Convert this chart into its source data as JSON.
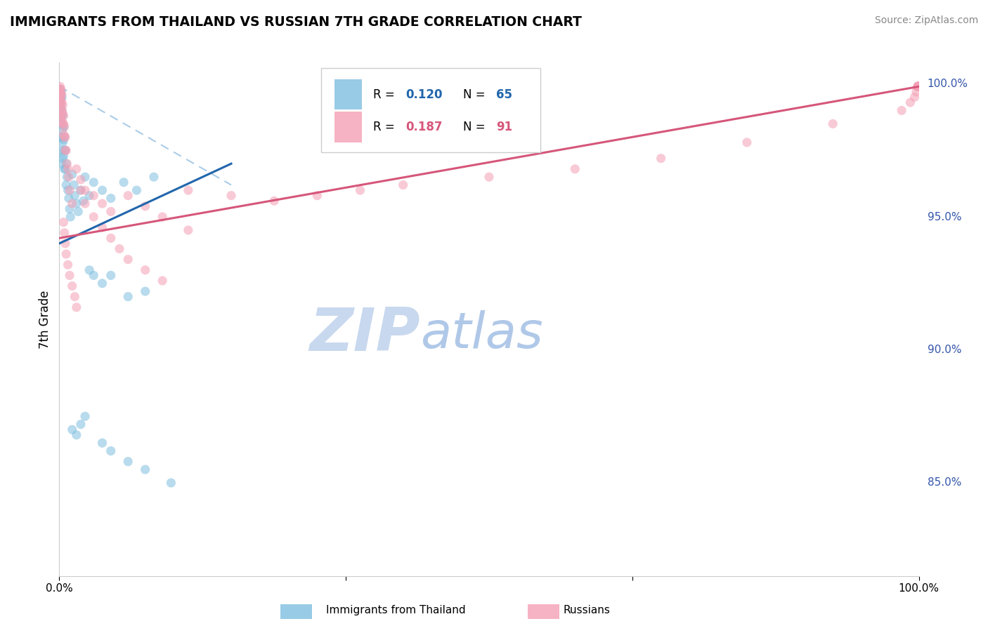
{
  "title": "IMMIGRANTS FROM THAILAND VS RUSSIAN 7TH GRADE CORRELATION CHART",
  "source_text": "Source: ZipAtlas.com",
  "xlabel_left": "Immigrants from Thailand",
  "xlabel_right": "Russians",
  "ylabel": "7th Grade",
  "xlim": [
    0.0,
    1.0
  ],
  "ylim": [
    0.815,
    1.008
  ],
  "right_yticks": [
    0.85,
    0.9,
    0.95,
    1.0
  ],
  "right_yticklabels": [
    "85.0%",
    "90.0%",
    "95.0%",
    "100.0%"
  ],
  "legend_blue_R": "0.120",
  "legend_blue_N": "65",
  "legend_pink_R": "0.187",
  "legend_pink_N": "91",
  "blue_color": "#7fbfdf",
  "pink_color": "#f4a0b5",
  "blue_line_color": "#2166ac",
  "pink_line_color": "#d6567a",
  "dashed_line_color": "#aacce8",
  "scatter_alpha": 0.55,
  "marker_size": 90,
  "blue_points_x": [
    0.001,
    0.001,
    0.001,
    0.001,
    0.002,
    0.002,
    0.002,
    0.002,
    0.002,
    0.002,
    0.003,
    0.003,
    0.003,
    0.003,
    0.003,
    0.003,
    0.004,
    0.004,
    0.004,
    0.004,
    0.005,
    0.005,
    0.005,
    0.006,
    0.006,
    0.006,
    0.007,
    0.007,
    0.008,
    0.008,
    0.009,
    0.01,
    0.011,
    0.012,
    0.013,
    0.015,
    0.017,
    0.018,
    0.02,
    0.022,
    0.025,
    0.028,
    0.03,
    0.035,
    0.04,
    0.05,
    0.06,
    0.075,
    0.09,
    0.11,
    0.035,
    0.04,
    0.05,
    0.06,
    0.08,
    0.1,
    0.015,
    0.02,
    0.025,
    0.03,
    0.05,
    0.06,
    0.08,
    0.1,
    0.13
  ],
  "blue_points_y": [
    0.998,
    0.996,
    0.994,
    0.99,
    0.997,
    0.995,
    0.992,
    0.988,
    0.985,
    0.98,
    0.995,
    0.99,
    0.985,
    0.98,
    0.975,
    0.97,
    0.988,
    0.983,
    0.978,
    0.972,
    0.984,
    0.979,
    0.973,
    0.98,
    0.975,
    0.968,
    0.975,
    0.968,
    0.97,
    0.962,
    0.965,
    0.96,
    0.957,
    0.953,
    0.95,
    0.966,
    0.962,
    0.958,
    0.955,
    0.952,
    0.96,
    0.956,
    0.965,
    0.958,
    0.963,
    0.96,
    0.957,
    0.963,
    0.96,
    0.965,
    0.93,
    0.928,
    0.925,
    0.928,
    0.92,
    0.922,
    0.87,
    0.868,
    0.872,
    0.875,
    0.865,
    0.862,
    0.858,
    0.855,
    0.85
  ],
  "pink_points_x": [
    0.001,
    0.001,
    0.001,
    0.001,
    0.001,
    0.002,
    0.002,
    0.002,
    0.002,
    0.002,
    0.003,
    0.003,
    0.003,
    0.003,
    0.004,
    0.004,
    0.004,
    0.005,
    0.005,
    0.005,
    0.006,
    0.006,
    0.007,
    0.007,
    0.008,
    0.009,
    0.01,
    0.011,
    0.012,
    0.015,
    0.02,
    0.025,
    0.03,
    0.04,
    0.05,
    0.06,
    0.08,
    0.1,
    0.12,
    0.15,
    0.005,
    0.006,
    0.007,
    0.008,
    0.01,
    0.012,
    0.015,
    0.018,
    0.02,
    0.025,
    0.03,
    0.04,
    0.05,
    0.06,
    0.07,
    0.08,
    0.1,
    0.12,
    0.15,
    0.2,
    0.25,
    0.3,
    0.35,
    0.4,
    0.5,
    0.6,
    0.7,
    0.8,
    0.9,
    0.98,
    0.99,
    0.995,
    0.997,
    0.999,
    0.999,
    0.999,
    0.999,
    0.999,
    0.999,
    0.999,
    0.999,
    0.999,
    0.999,
    0.999,
    0.999,
    0.999,
    0.999,
    0.999,
    0.999,
    0.999,
    0.999
  ],
  "pink_points_y": [
    0.999,
    0.998,
    0.997,
    0.995,
    0.993,
    0.998,
    0.996,
    0.994,
    0.991,
    0.988,
    0.996,
    0.993,
    0.99,
    0.986,
    0.992,
    0.989,
    0.985,
    0.988,
    0.985,
    0.981,
    0.984,
    0.98,
    0.98,
    0.975,
    0.975,
    0.97,
    0.968,
    0.965,
    0.96,
    0.955,
    0.968,
    0.964,
    0.96,
    0.958,
    0.955,
    0.952,
    0.958,
    0.954,
    0.95,
    0.945,
    0.948,
    0.944,
    0.94,
    0.936,
    0.932,
    0.928,
    0.924,
    0.92,
    0.916,
    0.96,
    0.955,
    0.95,
    0.946,
    0.942,
    0.938,
    0.934,
    0.93,
    0.926,
    0.96,
    0.958,
    0.956,
    0.958,
    0.96,
    0.962,
    0.965,
    0.968,
    0.972,
    0.978,
    0.985,
    0.99,
    0.993,
    0.995,
    0.997,
    0.999,
    0.999,
    0.999,
    0.999,
    0.999,
    0.999,
    0.999,
    0.999,
    0.999,
    0.999,
    0.999,
    0.999,
    0.999,
    0.999,
    0.999,
    0.999,
    0.999,
    0.999
  ],
  "blue_line_x": [
    0.0,
    0.2
  ],
  "blue_line_y": [
    0.94,
    0.97
  ],
  "pink_line_x": [
    0.0,
    1.0
  ],
  "pink_line_y": [
    0.942,
    0.999
  ],
  "dashed_line_x": [
    0.0,
    0.2
  ],
  "dashed_line_y": [
    0.999,
    0.962
  ],
  "watermark_zip": "ZIP",
  "watermark_atlas": "atlas",
  "watermark_color_zip": "#c8d8ee",
  "watermark_color_atlas": "#b0c8e8",
  "background_color": "#ffffff",
  "grid_color": "#cccccc"
}
